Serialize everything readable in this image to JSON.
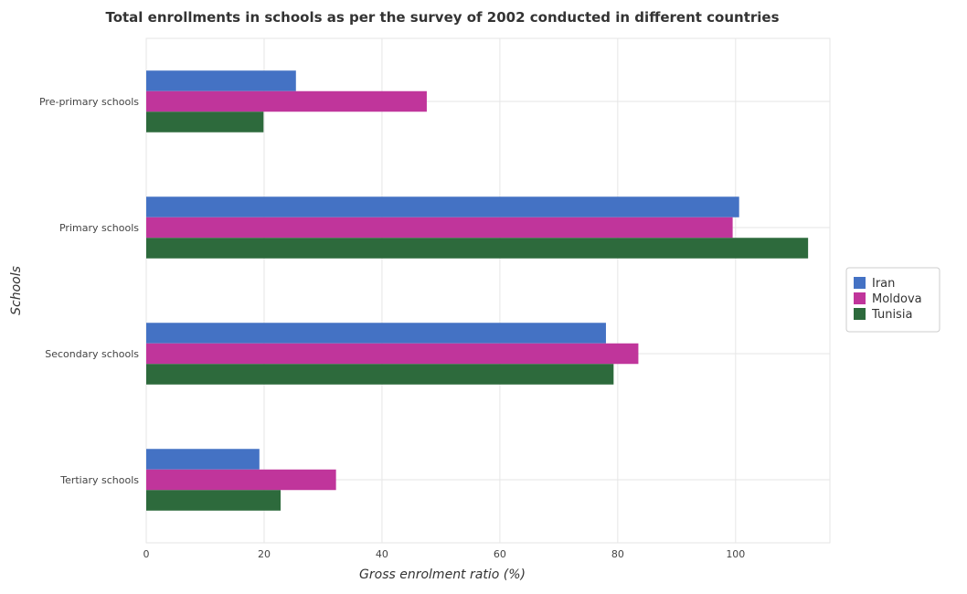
{
  "chart_data": {
    "type": "bar",
    "orientation": "horizontal",
    "title": "Total enrollments in schools as per the survey of 2002 conducted in different countries",
    "xlabel": "Gross enrolment ratio (%)",
    "ylabel": "Schools",
    "categories": [
      "Pre-primary schools",
      "Primary schools",
      "Secondary schools",
      "Tertiary schools"
    ],
    "xlim": [
      0,
      116
    ],
    "xticks": [
      0,
      20,
      40,
      60,
      80,
      100
    ],
    "grid": true,
    "legend_position": "right",
    "series": [
      {
        "name": "Iran",
        "color": "#4472c4",
        "values": [
          25.4,
          100.6,
          78.0,
          19.2
        ]
      },
      {
        "name": "Moldova",
        "color": "#c0359b",
        "values": [
          47.6,
          99.5,
          83.5,
          32.2
        ]
      },
      {
        "name": "Tunisia",
        "color": "#2d6a3c",
        "values": [
          19.9,
          112.3,
          79.3,
          22.8
        ]
      }
    ]
  }
}
